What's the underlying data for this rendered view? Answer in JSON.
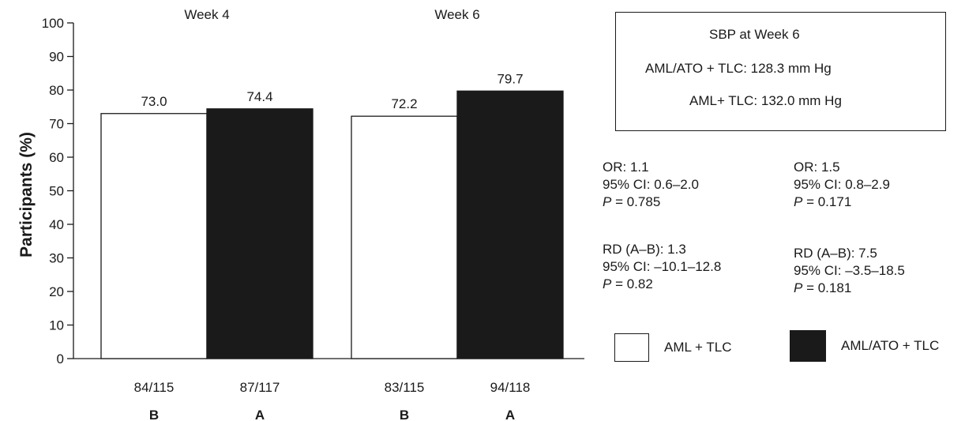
{
  "chart_data": {
    "type": "bar",
    "ylabel": "Participants (%)",
    "ylim": [
      0,
      100
    ],
    "yticks": [
      0,
      10,
      20,
      30,
      40,
      50,
      60,
      70,
      80,
      90,
      100
    ],
    "grid": false,
    "groups": [
      "Week 4",
      "Week 6"
    ],
    "series": [
      {
        "name": "AML + TLC",
        "letter": "B",
        "color": "#ffffff",
        "values": [
          73.0,
          72.2
        ],
        "value_labels": [
          "73.0",
          "72.2"
        ],
        "counts": [
          "84/115",
          "83/115"
        ]
      },
      {
        "name": "AML/ATO + TLC",
        "letter": "A",
        "color": "#1a1a1a",
        "values": [
          74.4,
          79.7
        ],
        "value_labels": [
          "74.4",
          "79.7"
        ],
        "counts": [
          "87/117",
          "94/118"
        ]
      }
    ],
    "legend_position": "bottom-right"
  },
  "sbp_box": {
    "title": "SBP at Week 6",
    "line1": "AML/ATO + TLC: 128.3 mm Hg",
    "line2": "AML+ TLC: 132.0 mm Hg"
  },
  "stats": {
    "week4": {
      "or": "OR: 1.1",
      "or_ci": "95% CI: 0.6–2.0",
      "or_p": "= 0.785",
      "rd": "RD (A–B): 1.3",
      "rd_ci": "95% CI: –10.1–12.8",
      "rd_p": "= 0.82"
    },
    "week6": {
      "or": "OR: 1.5",
      "or_ci": "95% CI: 0.8–2.9",
      "or_p": "= 0.171",
      "rd": "RD (A–B): 7.5",
      "rd_ci": "95% CI: –3.5–18.5",
      "rd_p": "= 0.181"
    },
    "p_symbol": "P"
  }
}
